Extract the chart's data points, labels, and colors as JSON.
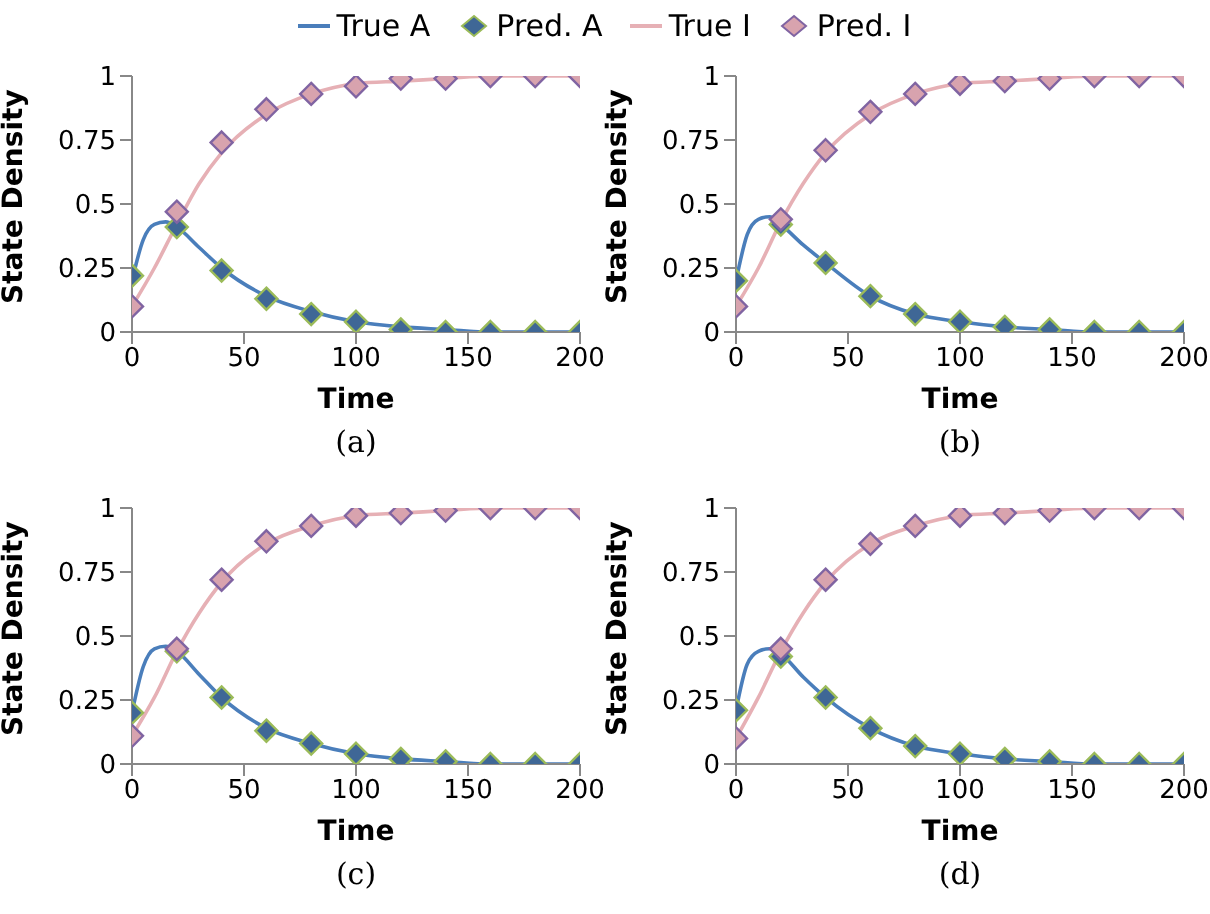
{
  "chart_data": [
    {
      "type": "line",
      "xlabel": "Time",
      "ylabel": "State Density",
      "xlim": [
        0,
        200
      ],
      "xticks": [
        0,
        50,
        100,
        150,
        200
      ],
      "ylim": [
        0,
        1
      ],
      "yticks": [
        0,
        0.25,
        0.5,
        0.75,
        1
      ],
      "grid": false,
      "legend": "top",
      "annotations": [
        "(a)"
      ],
      "series": [
        {
          "name": "True A",
          "marker": "none",
          "color": "#4a7ebb",
          "x": [
            0,
            5,
            10,
            15,
            20,
            30,
            40,
            60,
            80,
            100,
            120,
            140,
            160,
            180,
            200
          ],
          "values": [
            0.2,
            0.36,
            0.42,
            0.43,
            0.41,
            0.33,
            0.25,
            0.14,
            0.08,
            0.04,
            0.02,
            0.01,
            0,
            0,
            0
          ]
        },
        {
          "name": "Pred. A",
          "type": "scatter",
          "marker": "diamond",
          "color": "#3f6796",
          "x": [
            0,
            20,
            40,
            60,
            80,
            100,
            120,
            140,
            160,
            180,
            200
          ],
          "values": [
            0.22,
            0.41,
            0.24,
            0.13,
            0.07,
            0.04,
            0.01,
            0,
            0,
            0,
            0
          ]
        },
        {
          "name": "True I",
          "marker": "none",
          "color": "#e6b0b5",
          "x": [
            0,
            10,
            20,
            30,
            40,
            60,
            80,
            100,
            120,
            140,
            160,
            200
          ],
          "values": [
            0.1,
            0.25,
            0.42,
            0.58,
            0.7,
            0.85,
            0.93,
            0.97,
            0.98,
            0.99,
            1,
            1
          ]
        },
        {
          "name": "Pred. I",
          "type": "scatter",
          "marker": "diamond",
          "color": "#d8a3ae",
          "x": [
            0,
            20,
            40,
            60,
            80,
            100,
            120,
            140,
            160,
            180,
            200
          ],
          "values": [
            0.1,
            0.47,
            0.74,
            0.87,
            0.93,
            0.96,
            0.99,
            0.99,
            1,
            1,
            1
          ]
        }
      ]
    },
    {
      "type": "line",
      "xlabel": "Time",
      "ylabel": "State Density",
      "xlim": [
        0,
        200
      ],
      "xticks": [
        0,
        50,
        100,
        150,
        200
      ],
      "ylim": [
        0,
        1
      ],
      "yticks": [
        0,
        0.25,
        0.5,
        0.75,
        1
      ],
      "grid": false,
      "annotations": [
        "(b)"
      ],
      "series": [
        {
          "marker": "none",
          "color": "#4a7ebb",
          "x": [
            0,
            5,
            10,
            15,
            20,
            30,
            40,
            60,
            80,
            100,
            120,
            140,
            160,
            180,
            200
          ],
          "values": [
            0.2,
            0.38,
            0.44,
            0.45,
            0.42,
            0.34,
            0.27,
            0.14,
            0.07,
            0.04,
            0.02,
            0.01,
            0,
            0,
            0
          ]
        },
        {
          "type": "scatter",
          "marker": "diamond",
          "color": "#3f6796",
          "x": [
            0,
            20,
            40,
            60,
            80,
            100,
            120,
            140,
            160,
            180,
            200
          ],
          "values": [
            0.2,
            0.42,
            0.27,
            0.14,
            0.07,
            0.04,
            0.02,
            0.01,
            0,
            0,
            0
          ]
        },
        {
          "marker": "none",
          "color": "#e6b0b5",
          "x": [
            0,
            10,
            20,
            30,
            40,
            60,
            80,
            100,
            120,
            140,
            160,
            200
          ],
          "values": [
            0.1,
            0.25,
            0.43,
            0.58,
            0.7,
            0.85,
            0.93,
            0.97,
            0.98,
            0.99,
            1,
            1
          ]
        },
        {
          "type": "scatter",
          "marker": "diamond",
          "color": "#d8a3ae",
          "x": [
            0,
            20,
            40,
            60,
            80,
            100,
            120,
            140,
            160,
            180,
            200
          ],
          "values": [
            0.1,
            0.44,
            0.71,
            0.86,
            0.93,
            0.97,
            0.98,
            0.99,
            1,
            1,
            1
          ]
        }
      ]
    },
    {
      "type": "line",
      "xlabel": "Time",
      "ylabel": "State Density",
      "xlim": [
        0,
        200
      ],
      "xticks": [
        0,
        50,
        100,
        150,
        200
      ],
      "ylim": [
        0,
        1
      ],
      "yticks": [
        0,
        0.25,
        0.5,
        0.75,
        1
      ],
      "grid": false,
      "annotations": [
        "(c)"
      ],
      "series": [
        {
          "marker": "none",
          "color": "#4a7ebb",
          "x": [
            0,
            5,
            10,
            15,
            20,
            30,
            40,
            60,
            80,
            100,
            120,
            140,
            160,
            180,
            200
          ],
          "values": [
            0.2,
            0.38,
            0.45,
            0.46,
            0.44,
            0.35,
            0.26,
            0.14,
            0.08,
            0.04,
            0.02,
            0.01,
            0,
            0,
            0
          ]
        },
        {
          "type": "scatter",
          "marker": "diamond",
          "color": "#3f6796",
          "x": [
            0,
            20,
            40,
            60,
            80,
            100,
            120,
            140,
            160,
            180,
            200
          ],
          "values": [
            0.2,
            0.44,
            0.26,
            0.13,
            0.08,
            0.04,
            0.02,
            0.01,
            0,
            0,
            0
          ]
        },
        {
          "marker": "none",
          "color": "#e6b0b5",
          "x": [
            0,
            10,
            20,
            30,
            40,
            60,
            80,
            100,
            120,
            140,
            160,
            200
          ],
          "values": [
            0.11,
            0.26,
            0.44,
            0.59,
            0.71,
            0.86,
            0.93,
            0.97,
            0.98,
            0.99,
            1,
            1
          ]
        },
        {
          "type": "scatter",
          "marker": "diamond",
          "color": "#d8a3ae",
          "x": [
            0,
            20,
            40,
            60,
            80,
            100,
            120,
            140,
            160,
            180,
            200
          ],
          "values": [
            0.11,
            0.45,
            0.72,
            0.87,
            0.93,
            0.97,
            0.98,
            0.99,
            1,
            1,
            1
          ]
        }
      ]
    },
    {
      "type": "line",
      "xlabel": "Time",
      "ylabel": "State Density",
      "xlim": [
        0,
        200
      ],
      "xticks": [
        0,
        50,
        100,
        150,
        200
      ],
      "ylim": [
        0,
        1
      ],
      "yticks": [
        0,
        0.25,
        0.5,
        0.75,
        1
      ],
      "grid": false,
      "annotations": [
        "(d)"
      ],
      "series": [
        {
          "marker": "none",
          "color": "#4a7ebb",
          "x": [
            0,
            5,
            10,
            15,
            20,
            30,
            40,
            60,
            80,
            100,
            120,
            140,
            160,
            180,
            200
          ],
          "values": [
            0.21,
            0.39,
            0.44,
            0.45,
            0.43,
            0.34,
            0.26,
            0.14,
            0.07,
            0.04,
            0.02,
            0.01,
            0,
            0,
            0
          ]
        },
        {
          "type": "scatter",
          "marker": "diamond",
          "color": "#3f6796",
          "x": [
            0,
            20,
            40,
            60,
            80,
            100,
            120,
            140,
            160,
            180,
            200
          ],
          "values": [
            0.21,
            0.42,
            0.26,
            0.14,
            0.07,
            0.04,
            0.02,
            0.01,
            0,
            0,
            0
          ]
        },
        {
          "marker": "none",
          "color": "#e6b0b5",
          "x": [
            0,
            10,
            20,
            30,
            40,
            60,
            80,
            100,
            120,
            140,
            160,
            200
          ],
          "values": [
            0.1,
            0.26,
            0.44,
            0.59,
            0.71,
            0.86,
            0.93,
            0.97,
            0.98,
            0.99,
            1,
            1
          ]
        },
        {
          "type": "scatter",
          "marker": "diamond",
          "color": "#d8a3ae",
          "x": [
            0,
            20,
            40,
            60,
            80,
            100,
            120,
            140,
            160,
            180,
            200
          ],
          "values": [
            0.1,
            0.45,
            0.72,
            0.86,
            0.93,
            0.97,
            0.98,
            0.99,
            1,
            1,
            1
          ]
        }
      ]
    }
  ]
}
